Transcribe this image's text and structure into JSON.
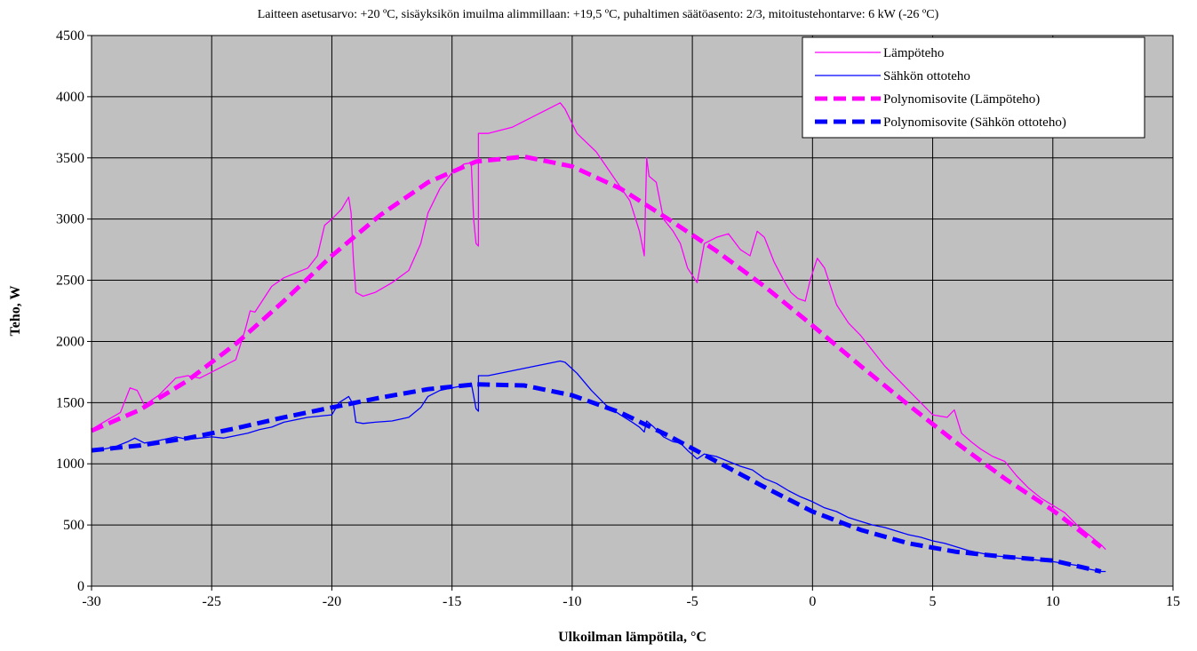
{
  "chart_data": {
    "type": "line",
    "subtitle": "Laitteen asetusarvo: +20 ºC, sisäyksikön imuilma alimmillaan: +19,5 ºC, puhaltimen säätöasento: 2/3, mitoitustehontarve: 6 kW (-26 ºC)",
    "xlabel": "Ulkoilman lämpötila, °C",
    "ylabel": "Teho, W",
    "xlim": [
      -30,
      15
    ],
    "ylim": [
      0,
      4500
    ],
    "xticks": [
      "-30",
      "-25",
      "-20",
      "-15",
      "-10",
      "-5",
      "0",
      "5",
      "10",
      "15"
    ],
    "yticks": [
      "0",
      "500",
      "1000",
      "1500",
      "2000",
      "2500",
      "3000",
      "3500",
      "4000",
      "4500"
    ],
    "grid": true,
    "background": "#c0c0c0",
    "legend_position": "top-right",
    "series": [
      {
        "name": "Lämpöteho",
        "color": "#ff00ff",
        "style": "solid",
        "points": [
          [
            -30,
            1280
          ],
          [
            -29.5,
            1340
          ],
          [
            -28.8,
            1420
          ],
          [
            -28.4,
            1620
          ],
          [
            -28.1,
            1600
          ],
          [
            -27.8,
            1480
          ],
          [
            -27.2,
            1560
          ],
          [
            -26.5,
            1700
          ],
          [
            -26,
            1720
          ],
          [
            -25.5,
            1700
          ],
          [
            -25,
            1750
          ],
          [
            -24.5,
            1800
          ],
          [
            -24,
            1850
          ],
          [
            -23.6,
            2100
          ],
          [
            -23.4,
            2250
          ],
          [
            -23.2,
            2240
          ],
          [
            -23,
            2300
          ],
          [
            -22.5,
            2450
          ],
          [
            -22,
            2520
          ],
          [
            -21.5,
            2560
          ],
          [
            -21,
            2600
          ],
          [
            -20.6,
            2700
          ],
          [
            -20.3,
            2950
          ],
          [
            -20,
            3000
          ],
          [
            -19.6,
            3080
          ],
          [
            -19.3,
            3180
          ],
          [
            -19.2,
            3050
          ],
          [
            -19.1,
            2650
          ],
          [
            -19,
            2400
          ],
          [
            -18.7,
            2370
          ],
          [
            -18.2,
            2400
          ],
          [
            -17.5,
            2480
          ],
          [
            -16.8,
            2580
          ],
          [
            -16.3,
            2800
          ],
          [
            -16,
            3050
          ],
          [
            -15.5,
            3250
          ],
          [
            -15,
            3380
          ],
          [
            -14.5,
            3450
          ],
          [
            -14.2,
            3460
          ],
          [
            -14.1,
            3000
          ],
          [
            -14,
            2800
          ],
          [
            -13.9,
            2780
          ],
          [
            -13.9,
            3700
          ],
          [
            -13.5,
            3700
          ],
          [
            -12.5,
            3750
          ],
          [
            -11.5,
            3850
          ],
          [
            -10.5,
            3950
          ],
          [
            -10.3,
            3900
          ],
          [
            -9.8,
            3700
          ],
          [
            -9,
            3550
          ],
          [
            -8.2,
            3320
          ],
          [
            -7.6,
            3150
          ],
          [
            -7.2,
            2900
          ],
          [
            -7,
            2700
          ],
          [
            -6.9,
            3500
          ],
          [
            -6.8,
            3350
          ],
          [
            -6.5,
            3300
          ],
          [
            -6.2,
            3000
          ],
          [
            -5.8,
            2900
          ],
          [
            -5.5,
            2800
          ],
          [
            -5.2,
            2600
          ],
          [
            -4.8,
            2480
          ],
          [
            -4.5,
            2800
          ],
          [
            -4,
            2850
          ],
          [
            -3.5,
            2880
          ],
          [
            -3,
            2750
          ],
          [
            -2.6,
            2700
          ],
          [
            -2.3,
            2900
          ],
          [
            -2,
            2850
          ],
          [
            -1.6,
            2650
          ],
          [
            -1.2,
            2500
          ],
          [
            -0.9,
            2400
          ],
          [
            -0.6,
            2350
          ],
          [
            -0.3,
            2330
          ],
          [
            -0.1,
            2500
          ],
          [
            0.2,
            2680
          ],
          [
            0.5,
            2600
          ],
          [
            1,
            2300
          ],
          [
            1.5,
            2150
          ],
          [
            2,
            2050
          ],
          [
            3,
            1800
          ],
          [
            4,
            1600
          ],
          [
            5,
            1400
          ],
          [
            5.6,
            1380
          ],
          [
            5.9,
            1440
          ],
          [
            6.2,
            1250
          ],
          [
            6.6,
            1180
          ],
          [
            7,
            1120
          ],
          [
            7.5,
            1060
          ],
          [
            8,
            1020
          ],
          [
            8.5,
            900
          ],
          [
            9,
            800
          ],
          [
            9.5,
            720
          ],
          [
            10,
            660
          ],
          [
            10.5,
            600
          ],
          [
            11,
            500
          ],
          [
            11.5,
            420
          ],
          [
            12,
            340
          ],
          [
            12.2,
            300
          ]
        ]
      },
      {
        "name": "Sähkön ottoteho",
        "color": "#0000ff",
        "style": "solid",
        "points": [
          [
            -30,
            1110
          ],
          [
            -29.5,
            1120
          ],
          [
            -29,
            1140
          ],
          [
            -28.5,
            1180
          ],
          [
            -28.2,
            1210
          ],
          [
            -27.8,
            1170
          ],
          [
            -27.2,
            1190
          ],
          [
            -26.5,
            1220
          ],
          [
            -26,
            1200
          ],
          [
            -25.5,
            1210
          ],
          [
            -25,
            1220
          ],
          [
            -24.5,
            1210
          ],
          [
            -24,
            1230
          ],
          [
            -23.5,
            1250
          ],
          [
            -23,
            1280
          ],
          [
            -22.5,
            1300
          ],
          [
            -22,
            1340
          ],
          [
            -21.5,
            1360
          ],
          [
            -21,
            1380
          ],
          [
            -20.5,
            1390
          ],
          [
            -20,
            1400
          ],
          [
            -19.7,
            1500
          ],
          [
            -19.3,
            1550
          ],
          [
            -19.1,
            1480
          ],
          [
            -19,
            1340
          ],
          [
            -18.7,
            1330
          ],
          [
            -18.2,
            1340
          ],
          [
            -17.5,
            1350
          ],
          [
            -16.8,
            1380
          ],
          [
            -16.3,
            1460
          ],
          [
            -16,
            1550
          ],
          [
            -15.5,
            1600
          ],
          [
            -15,
            1620
          ],
          [
            -14.5,
            1640
          ],
          [
            -14.2,
            1660
          ],
          [
            -14,
            1450
          ],
          [
            -13.9,
            1430
          ],
          [
            -13.9,
            1720
          ],
          [
            -13.5,
            1720
          ],
          [
            -12.5,
            1760
          ],
          [
            -11.5,
            1800
          ],
          [
            -10.5,
            1840
          ],
          [
            -10.3,
            1830
          ],
          [
            -9.8,
            1740
          ],
          [
            -9.2,
            1600
          ],
          [
            -8.6,
            1480
          ],
          [
            -8,
            1400
          ],
          [
            -7.5,
            1340
          ],
          [
            -7.2,
            1300
          ],
          [
            -7,
            1260
          ],
          [
            -6.9,
            1350
          ],
          [
            -6.6,
            1300
          ],
          [
            -6.2,
            1220
          ],
          [
            -5.8,
            1180
          ],
          [
            -5.5,
            1170
          ],
          [
            -5.2,
            1110
          ],
          [
            -4.8,
            1040
          ],
          [
            -4.5,
            1080
          ],
          [
            -4,
            1060
          ],
          [
            -3.5,
            1020
          ],
          [
            -3,
            980
          ],
          [
            -2.5,
            950
          ],
          [
            -2,
            880
          ],
          [
            -1.5,
            840
          ],
          [
            -1,
            780
          ],
          [
            -0.5,
            730
          ],
          [
            0,
            690
          ],
          [
            0.5,
            640
          ],
          [
            1,
            610
          ],
          [
            1.5,
            560
          ],
          [
            2,
            530
          ],
          [
            2.5,
            500
          ],
          [
            3,
            480
          ],
          [
            3.5,
            450
          ],
          [
            4,
            420
          ],
          [
            4.5,
            400
          ],
          [
            5,
            370
          ],
          [
            5.5,
            350
          ],
          [
            6,
            320
          ],
          [
            6.5,
            290
          ],
          [
            7,
            270
          ],
          [
            7.5,
            250
          ],
          [
            8,
            240
          ],
          [
            9,
            220
          ],
          [
            10,
            200
          ],
          [
            11,
            170
          ],
          [
            11.5,
            140
          ],
          [
            12,
            120
          ],
          [
            12.2,
            120
          ]
        ]
      },
      {
        "name": "Polynomisovite (Lämpöteho)",
        "color": "#ff00ff",
        "style": "dashed",
        "points": [
          [
            -30,
            1270
          ],
          [
            -28,
            1440
          ],
          [
            -26,
            1680
          ],
          [
            -24,
            1980
          ],
          [
            -22,
            2330
          ],
          [
            -20,
            2700
          ],
          [
            -18,
            3030
          ],
          [
            -16,
            3300
          ],
          [
            -14,
            3470
          ],
          [
            -12,
            3510
          ],
          [
            -10,
            3430
          ],
          [
            -8,
            3250
          ],
          [
            -6,
            3000
          ],
          [
            -4,
            2740
          ],
          [
            -2,
            2450
          ],
          [
            0,
            2130
          ],
          [
            2,
            1800
          ],
          [
            4,
            1480
          ],
          [
            6,
            1170
          ],
          [
            8,
            880
          ],
          [
            10,
            620
          ],
          [
            12,
            320
          ]
        ]
      },
      {
        "name": "Polynomisovite (Sähkön ottoteho)",
        "color": "#0000ff",
        "style": "dashed",
        "points": [
          [
            -30,
            1110
          ],
          [
            -28,
            1150
          ],
          [
            -26,
            1210
          ],
          [
            -24,
            1290
          ],
          [
            -22,
            1380
          ],
          [
            -20,
            1460
          ],
          [
            -18,
            1540
          ],
          [
            -16,
            1610
          ],
          [
            -14,
            1650
          ],
          [
            -12,
            1640
          ],
          [
            -10,
            1560
          ],
          [
            -8,
            1420
          ],
          [
            -6,
            1230
          ],
          [
            -4,
            1020
          ],
          [
            -2,
            810
          ],
          [
            0,
            610
          ],
          [
            2,
            460
          ],
          [
            4,
            350
          ],
          [
            6,
            280
          ],
          [
            8,
            240
          ],
          [
            10,
            210
          ],
          [
            12,
            120
          ]
        ]
      }
    ]
  }
}
